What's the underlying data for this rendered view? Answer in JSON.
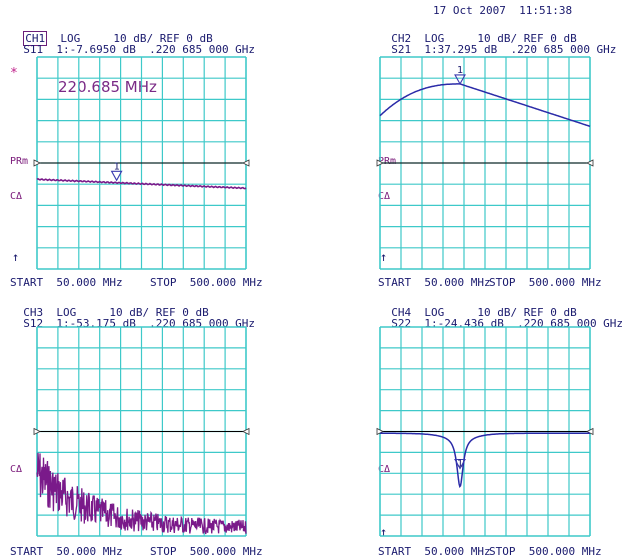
{
  "timestamp": "17 Oct 2007  11:51:38",
  "colors": {
    "grid": "#3ec9c9",
    "trace": "#7a1a8a",
    "trace_blue": "#2a2aa8",
    "ref_line": "#000000",
    "marker": "#3b3bb0"
  },
  "channels": [
    {
      "id": "ch1",
      "line1": {
        "ch": "CH1",
        "format": "LOG",
        "scale": "10 dB/ REF 0 dB"
      },
      "line2": {
        "param": "S11",
        "marker": "1:-7.6950 dB  .220 685 000 GHz"
      },
      "star": "*",
      "readout": "220.685 MHz",
      "ref_label": "PRm",
      "delta_label": "CΔ",
      "start": "START  50.000 MHz",
      "stop": "STOP  500.000 MHz",
      "marker_label": "1",
      "marker_frac": 0.381,
      "trace_level_db": -7.7
    },
    {
      "id": "ch2",
      "line1": {
        "ch": "CH2",
        "format": "LOG",
        "scale": "10 dB/ REF 0 dB"
      },
      "line2": {
        "param": "S21",
        "marker": "1:37.295 dB  .220 685 000 GHz"
      },
      "ref_label": "PRm",
      "delta_label": "CΔ",
      "start": "START  50.000 MHz",
      "stop": "STOP  500.000 MHz",
      "marker_label": "1",
      "marker_frac": 0.381,
      "trace_peak_db": 37.3
    },
    {
      "id": "ch3",
      "line1": {
        "ch": "CH3",
        "format": "LOG",
        "scale": "10 dB/ REF 0 dB"
      },
      "line2": {
        "param": "S12",
        "marker": "1:-53.175 dB  .220 685 000 GHz"
      },
      "delta_label": "CΔ",
      "start": "START  50.000 MHz",
      "stop": "STOP  500.000 MHz"
    },
    {
      "id": "ch4",
      "line1": {
        "ch": "CH4",
        "format": "LOG",
        "scale": "10 dB/ REF 0 dB"
      },
      "line2": {
        "param": "S22",
        "marker": "1:-24.436 dB  .220 685 000 GHz"
      },
      "delta_label": "CΔ",
      "start": "START  50.000 MHz",
      "stop": "STOP  500.000 MHz",
      "marker_label": "1",
      "marker_frac": 0.381,
      "trace_dip_db": -24.4
    }
  ]
}
